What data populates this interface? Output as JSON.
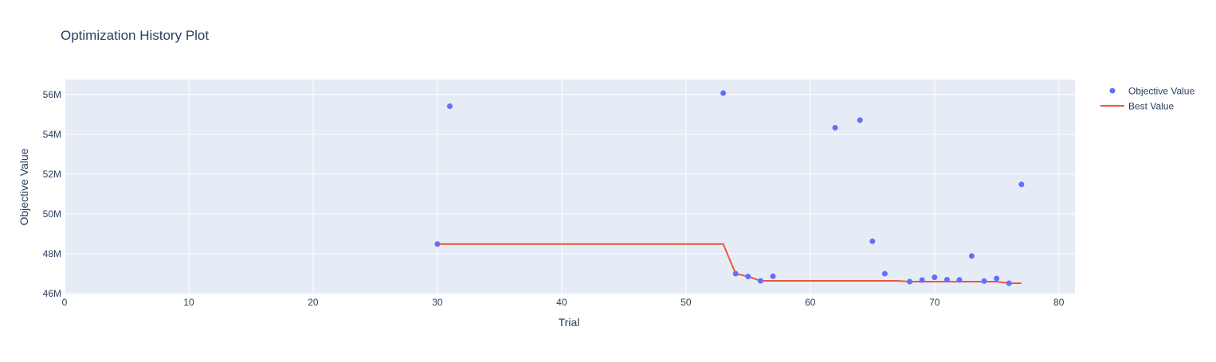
{
  "chart_data": {
    "type": "scatter",
    "title": "Optimization History Plot",
    "xlabel": "Trial",
    "ylabel": "Objective Value",
    "xlim": [
      0,
      81.3
    ],
    "ylim": [
      45.95,
      56.75
    ],
    "x_ticks": [
      0,
      10,
      20,
      30,
      40,
      50,
      60,
      70,
      80
    ],
    "x_tick_labels": [
      "0",
      "10",
      "20",
      "30",
      "40",
      "50",
      "60",
      "70",
      "80"
    ],
    "y_ticks": [
      46,
      48,
      50,
      52,
      54,
      56
    ],
    "y_tick_labels": [
      "46M",
      "48M",
      "50M",
      "52M",
      "54M",
      "56M"
    ],
    "y_unit": "millions",
    "grid": true,
    "legend_position": "top-right",
    "plot_background": "#E5ECF6",
    "series": [
      {
        "name": "Objective Value",
        "mode": "markers",
        "color": "#636EFA",
        "x": [
          30,
          31,
          53,
          54,
          55,
          56,
          57,
          62,
          64,
          65,
          66,
          68,
          69,
          70,
          71,
          72,
          73,
          74,
          75,
          76,
          77
        ],
        "y": [
          48.48,
          55.41,
          56.07,
          46.99,
          46.85,
          46.63,
          46.86,
          54.33,
          54.71,
          48.62,
          46.99,
          46.59,
          46.67,
          46.81,
          46.69,
          46.68,
          47.88,
          46.62,
          46.75,
          46.51,
          51.48
        ]
      },
      {
        "name": "Best Value",
        "mode": "lines",
        "color": "#EF553B",
        "x": [
          30,
          31,
          53,
          54,
          55,
          56,
          57,
          62,
          64,
          65,
          66,
          67,
          68,
          69,
          70,
          71,
          72,
          73,
          74,
          75,
          76,
          77
        ],
        "y": [
          48.48,
          48.48,
          48.48,
          46.99,
          46.85,
          46.63,
          46.63,
          46.63,
          46.63,
          46.63,
          46.63,
          46.63,
          46.59,
          46.59,
          46.59,
          46.59,
          46.59,
          46.59,
          46.59,
          46.59,
          46.51,
          46.51
        ]
      }
    ]
  }
}
